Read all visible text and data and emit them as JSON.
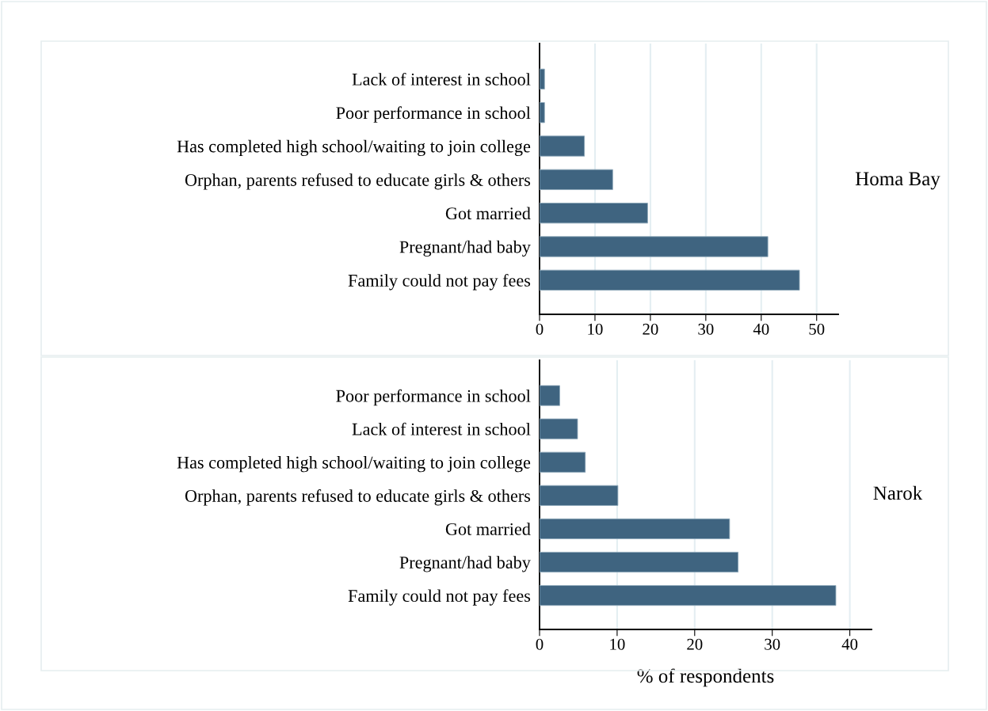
{
  "chart_data": [
    {
      "type": "bar",
      "orientation": "horizontal",
      "annotations": [
        "Homa Bay"
      ],
      "categories": [
        "Lack of interest in school",
        "Poor performance in school",
        "Has completed high school/waiting to join college",
        "Orphan, parents refused to educate girls & others",
        "Got married",
        "Pregnant/had baby",
        "Family could not pay fees"
      ],
      "values": [
        0.9,
        0.9,
        8.1,
        13.2,
        19.5,
        41.2,
        46.9
      ],
      "color": "#3f6480",
      "xlim": [
        0,
        53.9
      ],
      "xticks": [
        0,
        10,
        20,
        30,
        40,
        50
      ],
      "grid": "x"
    },
    {
      "type": "bar",
      "orientation": "horizontal",
      "annotations": [
        "Narok"
      ],
      "xlabel": "% of respondents",
      "categories": [
        "Poor performance in school",
        "Lack of interest in school",
        "Has completed high school/waiting to join college",
        "Orphan, parents refused to educate girls & others",
        "Got married",
        "Pregnant/had baby",
        "Family could not pay fees"
      ],
      "values": [
        2.6,
        4.9,
        5.9,
        10.1,
        24.5,
        25.6,
        38.2
      ],
      "color": "#3f6480",
      "xlim": [
        0,
        42.8
      ],
      "xticks": [
        0,
        10,
        20,
        30,
        40
      ],
      "grid": "x"
    }
  ]
}
